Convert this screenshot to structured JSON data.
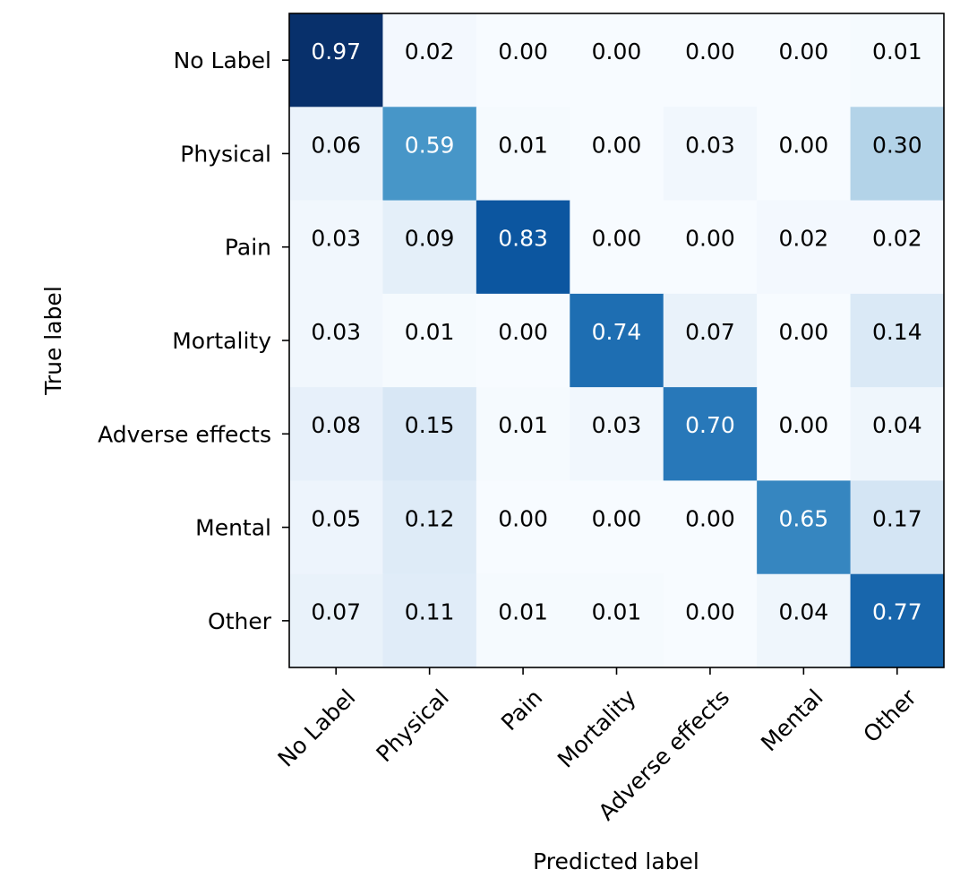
{
  "chart_data": {
    "type": "heatmap",
    "title": "",
    "xlabel": "Predicted label",
    "ylabel": "True label",
    "x_categories": [
      "No Label",
      "Physical",
      "Pain",
      "Mortality",
      "Adverse effects",
      "Mental",
      "Other"
    ],
    "y_categories": [
      "No Label",
      "Physical",
      "Pain",
      "Mortality",
      "Adverse effects",
      "Mental",
      "Other"
    ],
    "values": [
      [
        0.97,
        0.02,
        0.0,
        0.0,
        0.0,
        0.0,
        0.01
      ],
      [
        0.06,
        0.59,
        0.01,
        0.0,
        0.03,
        0.0,
        0.3
      ],
      [
        0.03,
        0.09,
        0.83,
        0.0,
        0.0,
        0.02,
        0.02
      ],
      [
        0.03,
        0.01,
        0.0,
        0.74,
        0.07,
        0.0,
        0.14
      ],
      [
        0.08,
        0.15,
        0.01,
        0.03,
        0.7,
        0.0,
        0.04
      ],
      [
        0.05,
        0.12,
        0.0,
        0.0,
        0.0,
        0.65,
        0.17
      ],
      [
        0.07,
        0.11,
        0.01,
        0.01,
        0.0,
        0.04,
        0.77
      ]
    ],
    "value_format": "0.00",
    "colormap": "Blues",
    "vmin": 0.0,
    "vmax": 0.97,
    "grid": false,
    "colorbar": false
  }
}
